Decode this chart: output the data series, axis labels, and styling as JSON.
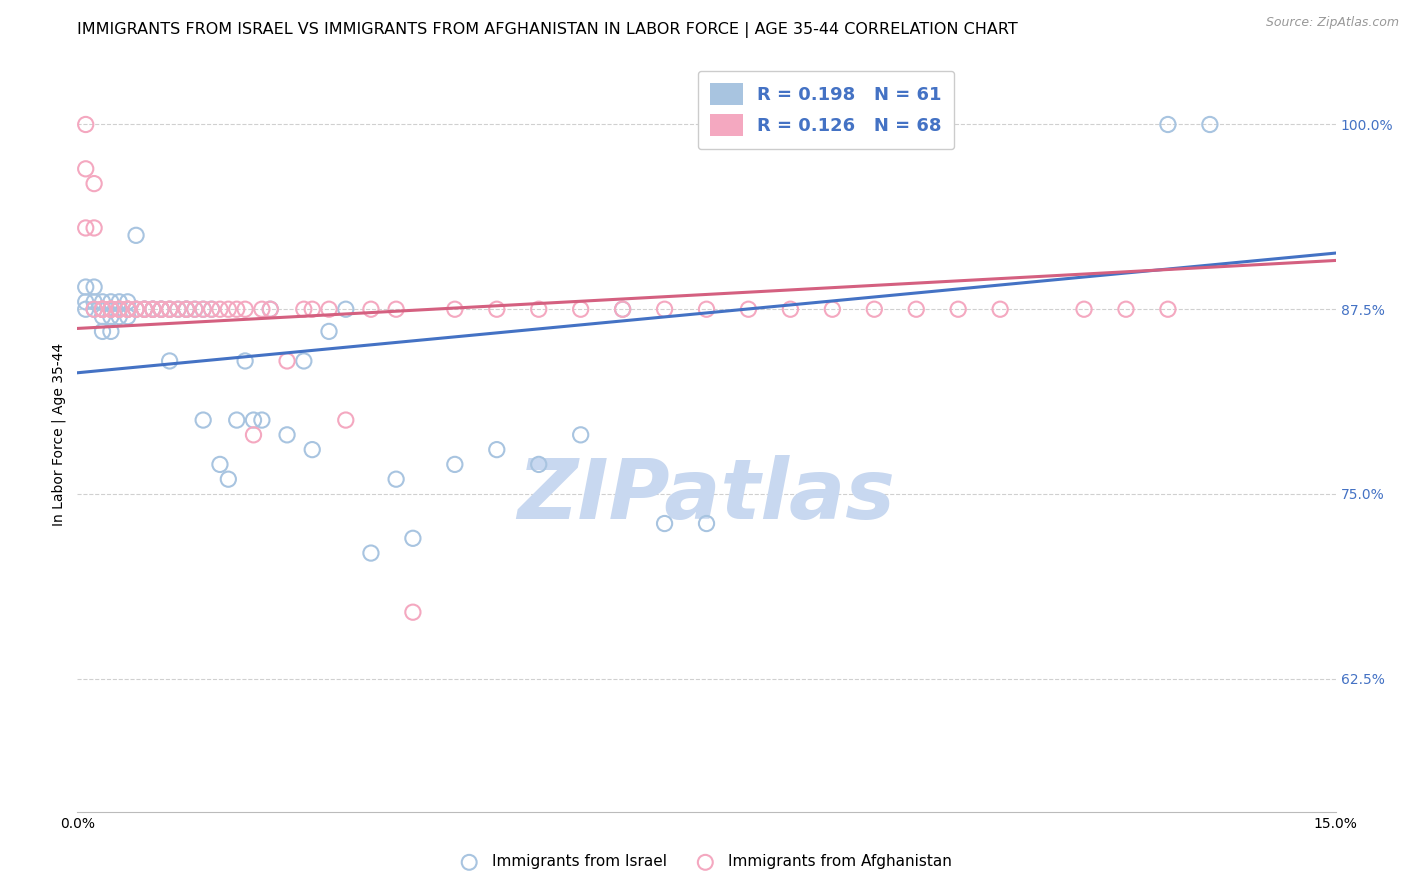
{
  "title": "IMMIGRANTS FROM ISRAEL VS IMMIGRANTS FROM AFGHANISTAN IN LABOR FORCE | AGE 35-44 CORRELATION CHART",
  "source": "Source: ZipAtlas.com",
  "ylabel": "In Labor Force | Age 35-44",
  "yticks": [
    0.625,
    0.75,
    0.875,
    1.0
  ],
  "ytick_labels": [
    "62.5%",
    "75.0%",
    "87.5%",
    "100.0%"
  ],
  "xmin": 0.0,
  "xmax": 0.15,
  "ymin": 0.535,
  "ymax": 1.045,
  "israel_color": "#a8c4e0",
  "afghanistan_color": "#f4a8c0",
  "israel_line_color": "#4472c4",
  "afghanistan_line_color": "#d46080",
  "legend_text_color": "#4472c4",
  "israel_R": 0.198,
  "israel_N": 61,
  "afghanistan_R": 0.126,
  "afghanistan_N": 68,
  "israel_scatter_x": [
    0.001,
    0.001,
    0.001,
    0.002,
    0.002,
    0.002,
    0.003,
    0.003,
    0.003,
    0.003,
    0.004,
    0.004,
    0.004,
    0.004,
    0.005,
    0.005,
    0.005,
    0.006,
    0.006,
    0.006,
    0.007,
    0.007,
    0.008,
    0.008,
    0.009,
    0.009,
    0.01,
    0.01,
    0.011,
    0.011,
    0.012,
    0.013,
    0.013,
    0.014,
    0.015,
    0.015,
    0.016,
    0.017,
    0.018,
    0.019,
    0.02,
    0.021,
    0.022,
    0.023,
    0.025,
    0.027,
    0.028,
    0.03,
    0.032,
    0.035,
    0.038,
    0.04,
    0.045,
    0.05,
    0.055,
    0.06,
    0.065,
    0.07,
    0.075,
    0.13,
    0.135
  ],
  "israel_scatter_y": [
    0.875,
    0.88,
    0.89,
    0.875,
    0.88,
    0.89,
    0.875,
    0.88,
    0.87,
    0.86,
    0.875,
    0.88,
    0.87,
    0.86,
    0.875,
    0.88,
    0.87,
    0.875,
    0.88,
    0.87,
    0.925,
    0.875,
    0.875,
    0.875,
    0.875,
    0.875,
    0.875,
    0.875,
    0.84,
    0.875,
    0.875,
    0.875,
    0.875,
    0.875,
    0.8,
    0.875,
    0.875,
    0.77,
    0.76,
    0.8,
    0.84,
    0.8,
    0.8,
    0.875,
    0.79,
    0.84,
    0.78,
    0.86,
    0.875,
    0.71,
    0.76,
    0.72,
    0.77,
    0.78,
    0.77,
    0.79,
    0.875,
    0.73,
    0.73,
    1.0,
    1.0
  ],
  "afghanistan_scatter_x": [
    0.001,
    0.001,
    0.001,
    0.002,
    0.002,
    0.002,
    0.003,
    0.003,
    0.003,
    0.003,
    0.004,
    0.004,
    0.004,
    0.004,
    0.005,
    0.005,
    0.005,
    0.006,
    0.006,
    0.006,
    0.007,
    0.007,
    0.008,
    0.008,
    0.009,
    0.009,
    0.01,
    0.01,
    0.011,
    0.011,
    0.012,
    0.013,
    0.013,
    0.014,
    0.015,
    0.016,
    0.017,
    0.018,
    0.019,
    0.02,
    0.021,
    0.022,
    0.023,
    0.025,
    0.027,
    0.028,
    0.03,
    0.032,
    0.035,
    0.038,
    0.04,
    0.045,
    0.05,
    0.055,
    0.06,
    0.065,
    0.07,
    0.075,
    0.08,
    0.085,
    0.09,
    0.095,
    0.1,
    0.105,
    0.11,
    0.12,
    0.125,
    0.13
  ],
  "afghanistan_scatter_y": [
    1.0,
    0.97,
    0.93,
    0.96,
    0.93,
    0.875,
    0.875,
    0.875,
    0.875,
    0.875,
    0.875,
    0.875,
    0.875,
    0.875,
    0.875,
    0.875,
    0.875,
    0.875,
    0.875,
    0.875,
    0.875,
    0.875,
    0.875,
    0.875,
    0.875,
    0.875,
    0.875,
    0.875,
    0.875,
    0.875,
    0.875,
    0.875,
    0.875,
    0.875,
    0.875,
    0.875,
    0.875,
    0.875,
    0.875,
    0.875,
    0.79,
    0.875,
    0.875,
    0.84,
    0.875,
    0.875,
    0.875,
    0.8,
    0.875,
    0.875,
    0.67,
    0.875,
    0.875,
    0.875,
    0.875,
    0.875,
    0.875,
    0.875,
    0.875,
    0.875,
    0.875,
    0.875,
    0.875,
    0.875,
    0.875,
    0.875,
    0.875,
    0.875
  ],
  "watermark": "ZIPatlas",
  "watermark_color": "#c8d8f0",
  "grid_color": "#d0d0d0",
  "title_fontsize": 11.5,
  "axis_label_fontsize": 10,
  "tick_fontsize": 10,
  "legend_fontsize": 13,
  "israel_line_x0": 0.0,
  "israel_line_y0": 0.832,
  "israel_line_x1": 0.15,
  "israel_line_y1": 0.913,
  "afg_line_x0": 0.0,
  "afg_line_y0": 0.862,
  "afg_line_x1": 0.15,
  "afg_line_y1": 0.908
}
